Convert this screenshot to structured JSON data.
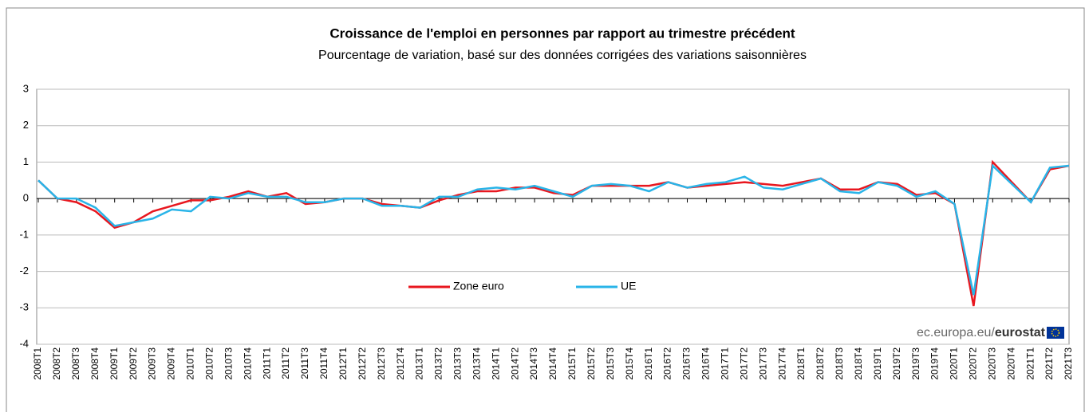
{
  "chart_data": {
    "type": "line",
    "title": "Croissance  de l'emploi en personnes  par rapport au trimestre  précédent",
    "subtitle": "Pourcentage de variation,  basé sur des données  corrigées des variations  saisonnières",
    "categories": [
      "2008T1",
      "2008T2",
      "2008T3",
      "2008T4",
      "2009T1",
      "2009T2",
      "2009T3",
      "2009T4",
      "2010T1",
      "2010T2",
      "2010T3",
      "2010T4",
      "2011T1",
      "2011T2",
      "2011T3",
      "2011T4",
      "2012T1",
      "2012T2",
      "2012T3",
      "2012T4",
      "2013T1",
      "2013T2",
      "2013T3",
      "2013T4",
      "2014T1",
      "2014T2",
      "2014T3",
      "2014T4",
      "2015T1",
      "2015T2",
      "2015T3",
      "2015T4",
      "2016T1",
      "2016T2",
      "2016T3",
      "2016T4",
      "2017T1",
      "2017T2",
      "2017T3",
      "2017T4",
      "2018T1",
      "2018T2",
      "2018T3",
      "2018T4",
      "2019T1",
      "2019T2",
      "2019T3",
      "2019T4",
      "2020T1",
      "2020T2",
      "2020T3",
      "2020T4",
      "2021T1",
      "2021T2",
      "2021T3"
    ],
    "series": [
      {
        "name": "Zone euro",
        "color": "#e8171f",
        "values": [
          0.5,
          0.0,
          -0.1,
          -0.35,
          -0.8,
          -0.65,
          -0.35,
          -0.2,
          -0.05,
          -0.05,
          0.05,
          0.2,
          0.05,
          0.15,
          -0.15,
          -0.1,
          0.0,
          0.0,
          -0.15,
          -0.2,
          -0.25,
          -0.05,
          0.1,
          0.2,
          0.2,
          0.3,
          0.3,
          0.15,
          0.1,
          0.35,
          0.35,
          0.35,
          0.35,
          0.45,
          0.3,
          0.35,
          0.4,
          0.45,
          0.4,
          0.35,
          0.45,
          0.55,
          0.25,
          0.25,
          0.45,
          0.4,
          0.1,
          0.15,
          -0.15,
          -2.95,
          1.0,
          0.45,
          -0.1,
          0.8,
          0.9
        ]
      },
      {
        "name": "UE",
        "color": "#29b4e8",
        "values": [
          0.5,
          0.0,
          0.0,
          -0.25,
          -0.75,
          -0.65,
          -0.55,
          -0.3,
          -0.35,
          0.05,
          0.0,
          0.15,
          0.05,
          0.05,
          -0.1,
          -0.1,
          0.0,
          0.0,
          -0.2,
          -0.2,
          -0.25,
          0.05,
          0.05,
          0.25,
          0.3,
          0.25,
          0.35,
          0.2,
          0.05,
          0.35,
          0.4,
          0.35,
          0.2,
          0.45,
          0.3,
          0.4,
          0.45,
          0.6,
          0.3,
          0.25,
          0.4,
          0.55,
          0.2,
          0.15,
          0.45,
          0.35,
          0.05,
          0.2,
          -0.15,
          -2.65,
          0.9,
          0.4,
          -0.1,
          0.85,
          0.9
        ]
      }
    ],
    "ylim": [
      -4,
      3
    ],
    "yticks": [
      3,
      2,
      1,
      0,
      -1,
      -2,
      -3,
      -4
    ],
    "grid": true,
    "source": [
      "ec.europa.eu/",
      "eurostat"
    ]
  }
}
